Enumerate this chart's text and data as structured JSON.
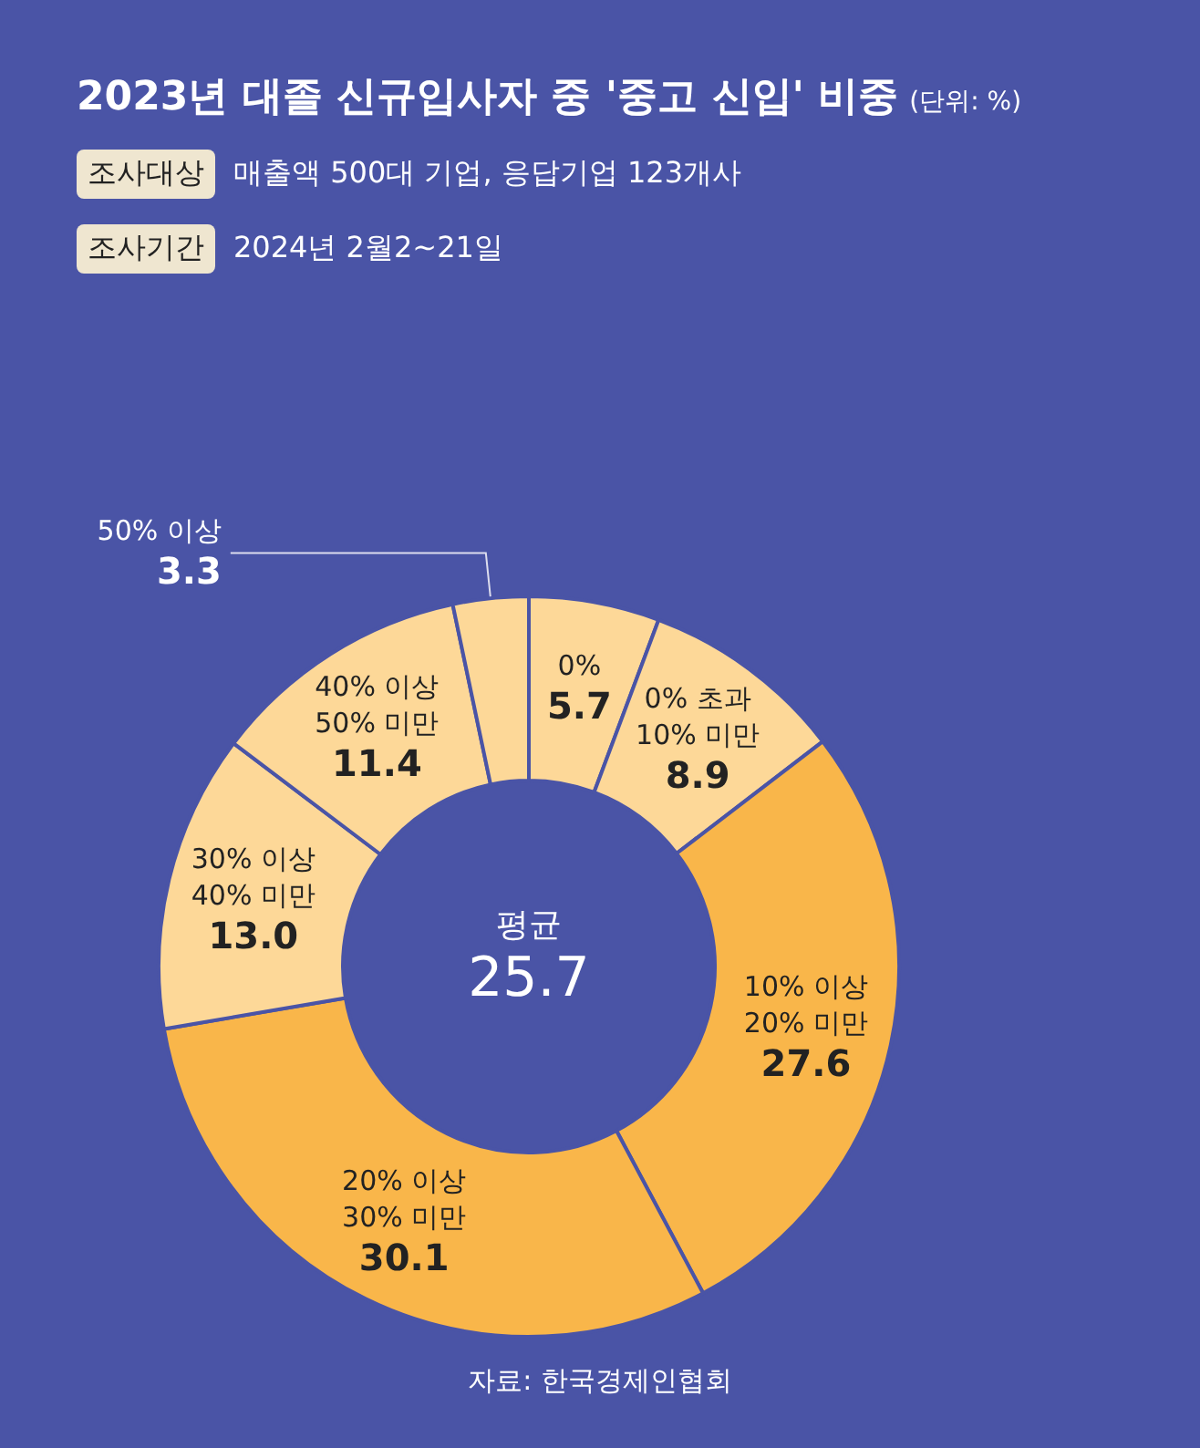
{
  "chart_data": {
    "type": "donut",
    "title": "2023년 대졸 신규입사자 중 '중고 신입' 비중",
    "subtitle": "(단위: %)",
    "annotations": [
      "조사대상 매출액 500대 기업, 응답기업 123개사",
      "조사기간 2024년 2월2~21일",
      "평균 25.7",
      "자료: 한국경제인협회"
    ],
    "categories": [
      "0%",
      "0% 초과 10% 미만",
      "10% 이상 20% 미만",
      "20% 이상 30% 미만",
      "30% 이상 40% 미만",
      "40% 이상 50% 미만",
      "50% 이상"
    ],
    "values": [
      5.7,
      8.9,
      27.6,
      30.1,
      13.0,
      11.4,
      3.3
    ],
    "value_labels": [
      "5.7",
      "8.9",
      "27.6",
      "30.1",
      "13.0",
      "11.4",
      "3.3"
    ],
    "colors": [
      "#fdd898",
      "#fdd898",
      "#f9b64a",
      "#f9b64a",
      "#fdd898",
      "#fdd898",
      "#fdd898"
    ],
    "legend": false
  }
}
